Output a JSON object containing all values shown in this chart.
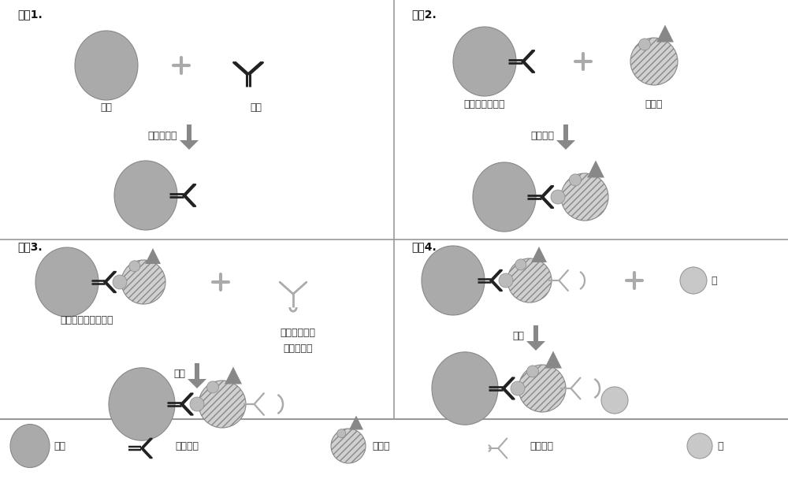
{
  "bg_color": "#ffffff",
  "divider_color": "#999999",
  "bead_color": "#aaaaaa",
  "bead_edge": "#888888",
  "exo_face": "#d0d0d0",
  "exo_edge": "#888888",
  "capture_ab_color": "#222222",
  "detect_ab_color": "#aaaaaa",
  "arrow_color": "#888888",
  "plus_color": "#aaaaaa",
  "enzyme_color": "#c8c8c8",
  "enzyme_edge": "#999999",
  "triangle_color": "#888888",
  "small_dot_color": "#bbbbbb",
  "label_color": "#333333",
  "title_color": "#111111",
  "font_size": 9,
  "title_font_size": 10,
  "legend_font_size": 9,
  "step1_title": "步骤1.",
  "step2_title": "步骤2.",
  "step3_title": "步骤3.",
  "step4_title": "步骤4.",
  "step1_bead_label": "珠粒",
  "step1_ab_label": "抗体",
  "step1_arrow_label": "蛋白质结合",
  "step2_bead_label": "抗体结合的珠粒",
  "step2_exo_label": "外泌体",
  "step2_arrow_label": "目标捕获",
  "step3_bead_label": "具有靶外泌体的珠粒",
  "step3_ab_label1": "具有结合标签",
  "step3_ab_label2": "的检测抗体",
  "step3_arrow_label": "孵育",
  "step4_enzyme_label": "酶",
  "step4_arrow_label": "孵育",
  "legend_bead": "珠粒",
  "legend_capture_ab": "捕获抗体",
  "legend_exo": "外泌体",
  "legend_detect_ab": "检测抗体",
  "legend_enzyme": "酶"
}
